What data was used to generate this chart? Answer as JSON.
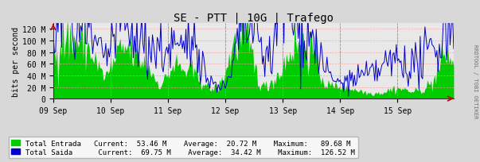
{
  "title": "SE - PTT | 10G | Trafego",
  "ylabel": "bits per second",
  "bg_color": "#d8d8d8",
  "plot_bg_color": "#e8e8e8",
  "grid_color": "#ff9999",
  "grid_style": "--",
  "entrada_color": "#00cc00",
  "saida_color": "#0000cc",
  "x_ticks_labels": [
    "09 Sep",
    "10 Sep",
    "11 Sep",
    "12 Sep",
    "13 Sep",
    "14 Sep",
    "15 Sep"
  ],
  "x_ticks_positions": [
    0,
    48,
    96,
    144,
    192,
    240,
    288
  ],
  "ylim": [
    0,
    130000000
  ],
  "yticks": [
    0,
    20000000,
    40000000,
    60000000,
    80000000,
    100000000,
    120000000
  ],
  "ytick_labels": [
    "0",
    "20 M",
    "40 M",
    "60 M",
    "80 M",
    "100 M",
    "120 M"
  ],
  "legend_entrada": "Total Entrada   Current:  53.46 M    Average:  20.72 M    Maximum:   89.68 M",
  "legend_saida": "Total Saida      Current:  69.75 M    Average:  34.42 M    Maximum:  126.52 M",
  "watermark": "RRDTOOL / TOBI OETIKER",
  "total_points": 336,
  "red_vlines": [
    48,
    96,
    144,
    192,
    240,
    288
  ],
  "arrow_color": "#cc0000"
}
